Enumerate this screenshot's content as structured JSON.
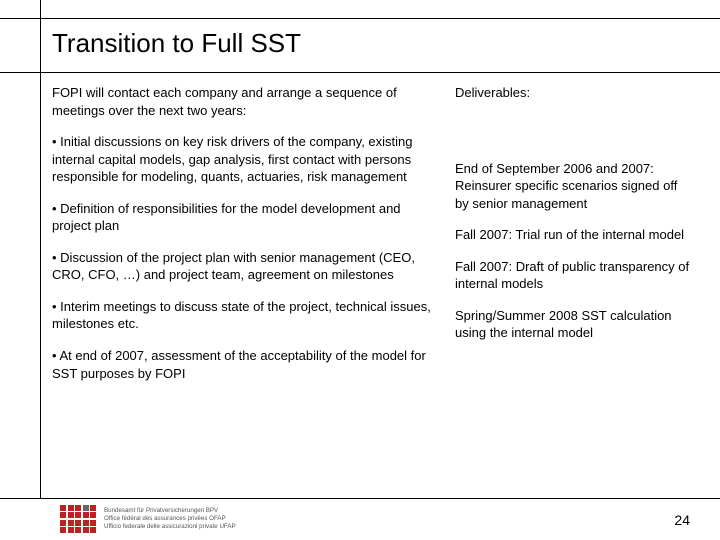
{
  "title": "Transition to Full SST",
  "intro": "FOPI will contact each company and arrange a sequence of meetings over the next two years:",
  "bullets": [
    "• Initial discussions on key risk drivers of the company, existing internal capital models, gap analysis, first contact with persons responsible for modeling, quants, actuaries, risk management",
    "• Definition of responsibilities for the model development and project plan",
    "• Discussion of the project plan with senior management (CEO, CRO, CFO, …) and project team, agreement on milestones",
    "• Interim meetings to discuss state of the project, technical issues, milestones etc.",
    "• At end of 2007, assessment of the acceptability of the model for SST purposes by FOPI"
  ],
  "deliverables_title": "Deliverables:",
  "deliverables": [
    "End of September 2006 and 2007: Reinsurer specific scenarios signed off by senior management",
    "Fall 2007: Trial run of the internal model",
    "Fall 2007: Draft of public transparency of internal models",
    "Spring/Summer 2008 SST calculation using the internal model"
  ],
  "footer": {
    "line1": "Bundesamt für Privatversicherungen BPV",
    "line2": "Office fédéral des assurances privées OFAP",
    "line3": "Ufficio federale delle assicurazioni private UFAP"
  },
  "pagenum": "24"
}
